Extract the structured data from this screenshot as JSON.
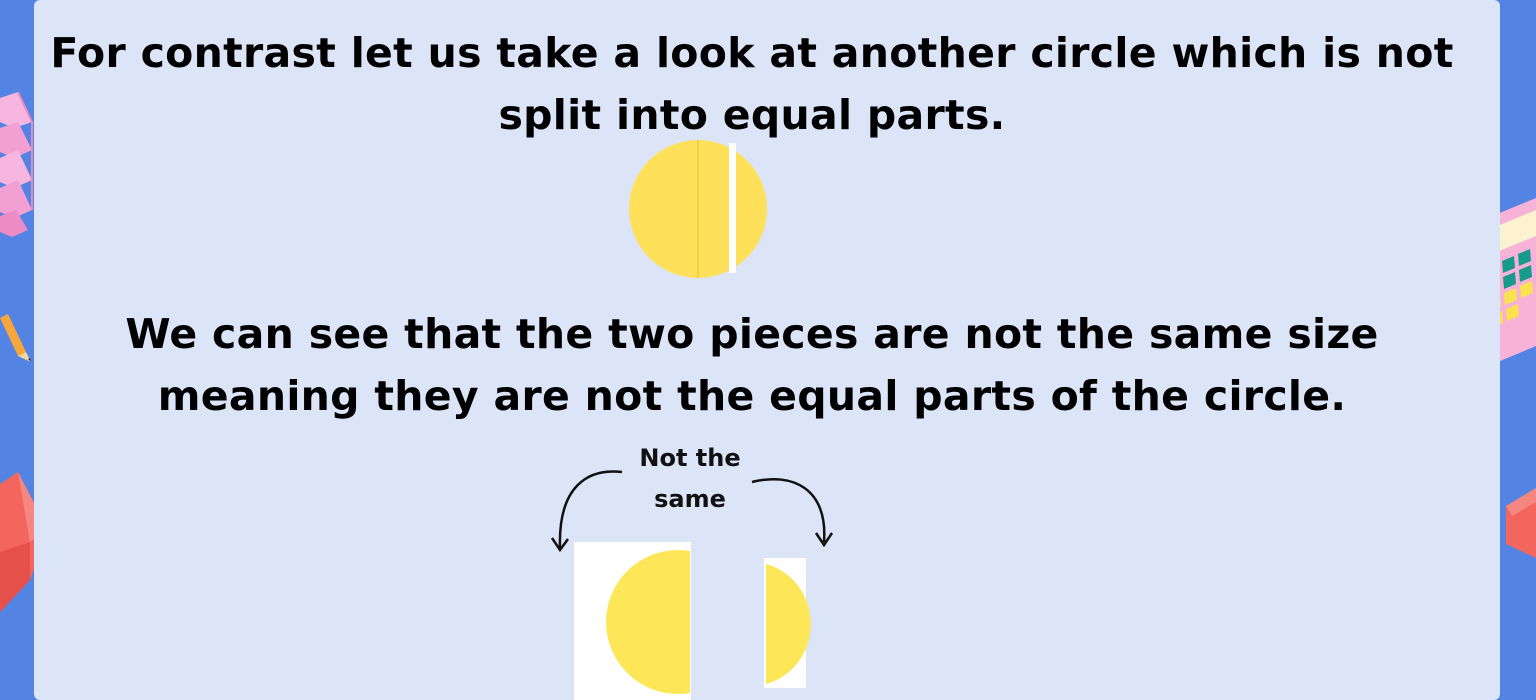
{
  "intro": {
    "line1": "For contrast let us take a look at another circle which is not",
    "line2": "split into equal parts."
  },
  "explanation": {
    "line1": "We can see that the two pieces are not the same size",
    "line2": "meaning they are not the equal parts of the circle."
  },
  "callout": {
    "line1": "Not the",
    "line2": "same"
  },
  "colors": {
    "background": "#5384e4",
    "panel": "#dbe5f7",
    "circle_fill": "#ffe05a",
    "piece_fill": "#fde759"
  },
  "decorations": [
    "pink-blocks-icon",
    "pencil-icon",
    "red-cube-icon",
    "calculator-icon",
    "red-cube-icon"
  ]
}
